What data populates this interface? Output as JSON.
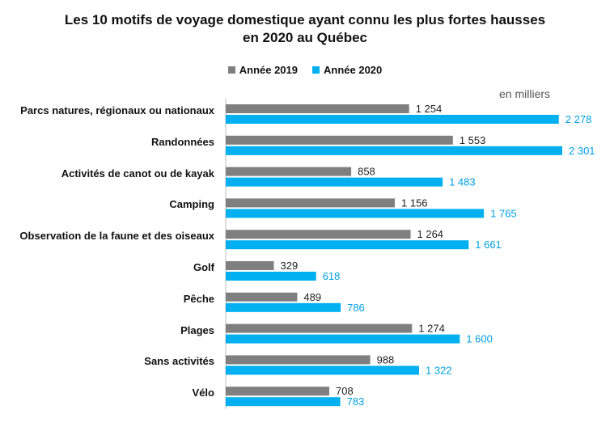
{
  "chart_data": {
    "type": "bar",
    "orientation": "horizontal",
    "title_line1": "Les 10 motifs de voyage domestique ayant connu les plus fortes hausses",
    "title_line2": "en 2020 au Québec",
    "unit_label": "en milliers",
    "categories": [
      "Parcs natures, régionaux ou nationaux",
      "Randonnées",
      "Activités de canot ou de kayak",
      "Camping",
      "Observation de la faune et des oiseaux",
      "Golf",
      "Pêche",
      "Plages",
      "Sans activités",
      "Vélo"
    ],
    "series": [
      {
        "name": "Année 2019",
        "color": "#7f7f7f",
        "label_color": "#222222",
        "values": [
          1254,
          1553,
          858,
          1156,
          1264,
          329,
          489,
          1274,
          988,
          708
        ],
        "labels": [
          "1 254",
          "1 553",
          "858",
          "1 156",
          "1 264",
          "329",
          "489",
          "1 274",
          "988",
          "708"
        ]
      },
      {
        "name": "Année 2020",
        "color": "#00b0f0",
        "label_color": "#00a0e0",
        "values": [
          2278,
          2301,
          1483,
          1765,
          1661,
          618,
          786,
          1600,
          1322,
          783
        ],
        "labels": [
          "2 278",
          "2 301",
          "1 483",
          "1 765",
          "1 661",
          "618",
          "786",
          "1 600",
          "1 322",
          "783"
        ]
      }
    ],
    "xlim": [
      0,
      2301
    ],
    "legend_position": "top-center",
    "grid": false
  }
}
